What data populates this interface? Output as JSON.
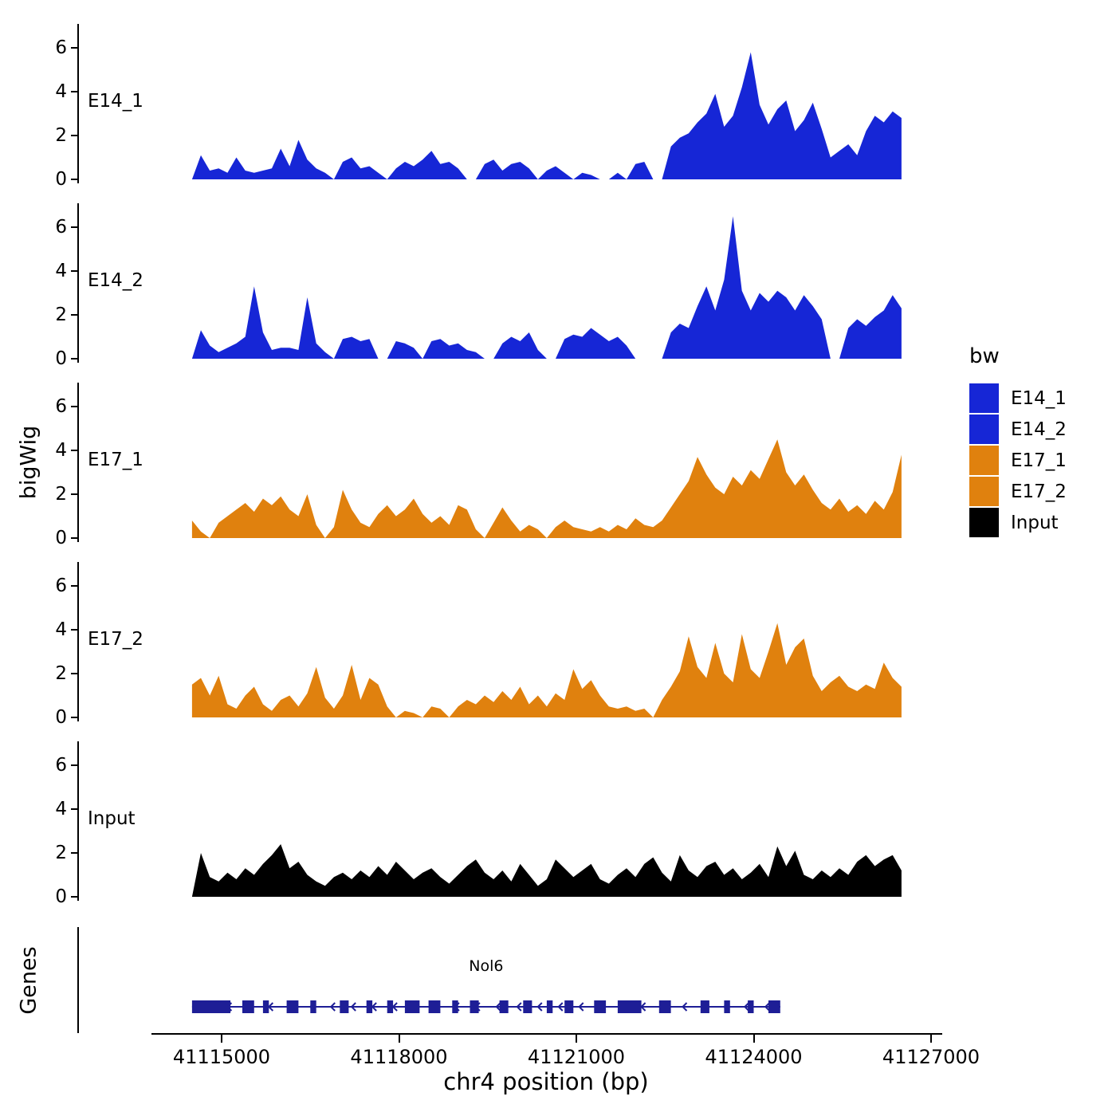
{
  "figure": {
    "ylabel": "bigWig",
    "genes_label": "Genes",
    "xlabel": "chr4 position (bp)"
  },
  "legend": {
    "title": "bw",
    "items": [
      {
        "label": "E14_1",
        "color": "#1626D6"
      },
      {
        "label": "E14_2",
        "color": "#1626D6"
      },
      {
        "label": "E17_1",
        "color": "#E0810E"
      },
      {
        "label": "E17_2",
        "color": "#E0810E"
      },
      {
        "label": "Input",
        "color": "#000000"
      }
    ]
  },
  "chart_data": {
    "type": "area",
    "title": "",
    "xlabel": "chr4 position (bp)",
    "ylabel": "bigWig",
    "chromosome": "chr4",
    "x_ticks": [
      41115000,
      41118000,
      41121000,
      41124000,
      41127000
    ],
    "y_ticks": [
      0,
      2,
      4,
      6
    ],
    "ylim": [
      0,
      6.9
    ],
    "x_start": 41114500,
    "x_step": 150,
    "legend_position": "right",
    "grid": false,
    "series": [
      {
        "name": "E14_1",
        "color": "#1626D6",
        "values": [
          0,
          1.1,
          0.4,
          0.5,
          0.3,
          1.0,
          0.4,
          0.3,
          0.4,
          0.5,
          1.4,
          0.6,
          1.8,
          0.9,
          0.5,
          0.3,
          0,
          0.8,
          1.0,
          0.5,
          0.6,
          0.3,
          0,
          0.5,
          0.8,
          0.6,
          0.9,
          1.3,
          0.7,
          0.8,
          0.5,
          0,
          0,
          0.7,
          0.9,
          0.4,
          0.7,
          0.8,
          0.5,
          0,
          0.4,
          0.6,
          0.3,
          0,
          0.3,
          0.2,
          0,
          0,
          0.3,
          0,
          0.7,
          0.8,
          0,
          0,
          1.5,
          1.9,
          2.1,
          2.6,
          3.0,
          3.9,
          2.4,
          2.9,
          4.2,
          5.8,
          3.4,
          2.5,
          3.2,
          3.6,
          2.2,
          2.7,
          3.5,
          2.3,
          1.0,
          1.3,
          1.6,
          1.1,
          2.2,
          2.9,
          2.6,
          3.1,
          2.8
        ]
      },
      {
        "name": "E14_2",
        "color": "#1626D6",
        "values": [
          0,
          1.3,
          0.6,
          0.3,
          0.5,
          0.7,
          1.0,
          3.3,
          1.2,
          0.4,
          0.5,
          0.5,
          0.4,
          2.8,
          0.7,
          0.3,
          0,
          0.9,
          1.0,
          0.8,
          0.9,
          0,
          0,
          0.8,
          0.7,
          0.5,
          0,
          0.8,
          0.9,
          0.6,
          0.7,
          0.4,
          0.3,
          0,
          0,
          0.7,
          1.0,
          0.8,
          1.2,
          0.4,
          0,
          0,
          0.9,
          1.1,
          1.0,
          1.4,
          1.1,
          0.8,
          1.0,
          0.6,
          0,
          0,
          0,
          0,
          1.2,
          1.6,
          1.4,
          2.4,
          3.3,
          2.2,
          3.6,
          6.5,
          3.1,
          2.2,
          3.0,
          2.6,
          3.1,
          2.8,
          2.2,
          2.9,
          2.4,
          1.8,
          0,
          0,
          1.4,
          1.8,
          1.5,
          1.9,
          2.2,
          2.9,
          2.3
        ]
      },
      {
        "name": "E17_1",
        "color": "#E0810E",
        "values": [
          0.8,
          0.3,
          0,
          0.7,
          1.0,
          1.3,
          1.6,
          1.2,
          1.8,
          1.5,
          1.9,
          1.3,
          1.0,
          2.0,
          0.6,
          0,
          0.5,
          2.2,
          1.3,
          0.7,
          0.5,
          1.1,
          1.5,
          1.0,
          1.3,
          1.8,
          1.1,
          0.7,
          1.0,
          0.6,
          1.5,
          1.3,
          0.4,
          0,
          0.7,
          1.4,
          0.8,
          0.3,
          0.6,
          0.4,
          0,
          0.5,
          0.8,
          0.5,
          0.4,
          0.3,
          0.5,
          0.3,
          0.6,
          0.4,
          0.9,
          0.6,
          0.5,
          0.8,
          1.4,
          2.0,
          2.6,
          3.7,
          2.9,
          2.3,
          2.0,
          2.8,
          2.4,
          3.1,
          2.7,
          3.6,
          4.5,
          3.0,
          2.4,
          2.9,
          2.2,
          1.6,
          1.3,
          1.8,
          1.2,
          1.5,
          1.1,
          1.7,
          1.3,
          2.1,
          3.8
        ]
      },
      {
        "name": "E17_2",
        "color": "#E0810E",
        "values": [
          1.5,
          1.8,
          1.0,
          1.9,
          0.6,
          0.4,
          1.0,
          1.4,
          0.6,
          0.3,
          0.8,
          1.0,
          0.5,
          1.1,
          2.3,
          0.9,
          0.4,
          1.0,
          2.4,
          0.8,
          1.8,
          1.5,
          0.5,
          0,
          0.3,
          0.2,
          0,
          0.5,
          0.4,
          0,
          0.5,
          0.8,
          0.6,
          1.0,
          0.7,
          1.2,
          0.8,
          1.4,
          0.6,
          1.0,
          0.5,
          1.1,
          0.8,
          2.2,
          1.3,
          1.7,
          1.0,
          0.5,
          0.4,
          0.5,
          0.3,
          0.4,
          0,
          0.8,
          1.4,
          2.1,
          3.7,
          2.3,
          1.8,
          3.4,
          2.0,
          1.6,
          3.8,
          2.2,
          1.8,
          3.0,
          4.3,
          2.4,
          3.2,
          3.6,
          1.9,
          1.2,
          1.6,
          1.9,
          1.4,
          1.2,
          1.5,
          1.3,
          2.5,
          1.8,
          1.4
        ]
      },
      {
        "name": "Input",
        "color": "#000000",
        "values": [
          0,
          2.0,
          0.9,
          0.7,
          1.1,
          0.8,
          1.3,
          1.0,
          1.5,
          1.9,
          2.4,
          1.3,
          1.6,
          1.0,
          0.7,
          0.5,
          0.9,
          1.1,
          0.8,
          1.2,
          0.9,
          1.4,
          1.0,
          1.6,
          1.2,
          0.8,
          1.1,
          1.3,
          0.9,
          0.6,
          1.0,
          1.4,
          1.7,
          1.1,
          0.8,
          1.2,
          0.7,
          1.5,
          1.0,
          0.5,
          0.8,
          1.7,
          1.3,
          0.9,
          1.2,
          1.5,
          0.8,
          0.6,
          1.0,
          1.3,
          0.9,
          1.5,
          1.8,
          1.1,
          0.7,
          1.9,
          1.2,
          0.9,
          1.4,
          1.6,
          1.0,
          1.3,
          0.8,
          1.1,
          1.5,
          0.9,
          2.3,
          1.4,
          2.1,
          1.0,
          0.8,
          1.2,
          0.9,
          1.3,
          1.0,
          1.6,
          1.9,
          1.4,
          1.7,
          1.9,
          1.2
        ]
      }
    ],
    "gene_track": {
      "name": "Nol6",
      "strand": "-",
      "start": 41114500,
      "end": 41124450,
      "color": "#1E1E96",
      "exons": [
        [
          41114500,
          41115150
        ],
        [
          41115350,
          41115550
        ],
        [
          41115700,
          41115800
        ],
        [
          41116100,
          41116300
        ],
        [
          41116500,
          41116600
        ],
        [
          41117000,
          41117150
        ],
        [
          41117450,
          41117550
        ],
        [
          41117800,
          41117900
        ],
        [
          41118100,
          41118350
        ],
        [
          41118500,
          41118700
        ],
        [
          41118900,
          41119000
        ],
        [
          41119200,
          41119350
        ],
        [
          41119700,
          41119850
        ],
        [
          41120100,
          41120250
        ],
        [
          41120500,
          41120600
        ],
        [
          41120800,
          41120950
        ],
        [
          41121300,
          41121500
        ],
        [
          41121700,
          41122100
        ],
        [
          41122400,
          41122600
        ],
        [
          41123100,
          41123250
        ],
        [
          41123500,
          41123600
        ],
        [
          41123900,
          41124000
        ],
        [
          41124250,
          41124450
        ]
      ]
    }
  }
}
